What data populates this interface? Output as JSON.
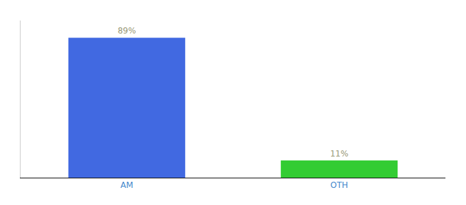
{
  "chart_data": {
    "type": "bar",
    "categories": [
      "AM",
      "OTH"
    ],
    "values": [
      89,
      11
    ],
    "value_labels": [
      "89%",
      "11%"
    ],
    "colors": [
      "#4169e1",
      "#33cc33"
    ],
    "ylim": [
      0,
      100
    ],
    "data_labels": true,
    "tick_labels": "x",
    "grid": false
  }
}
